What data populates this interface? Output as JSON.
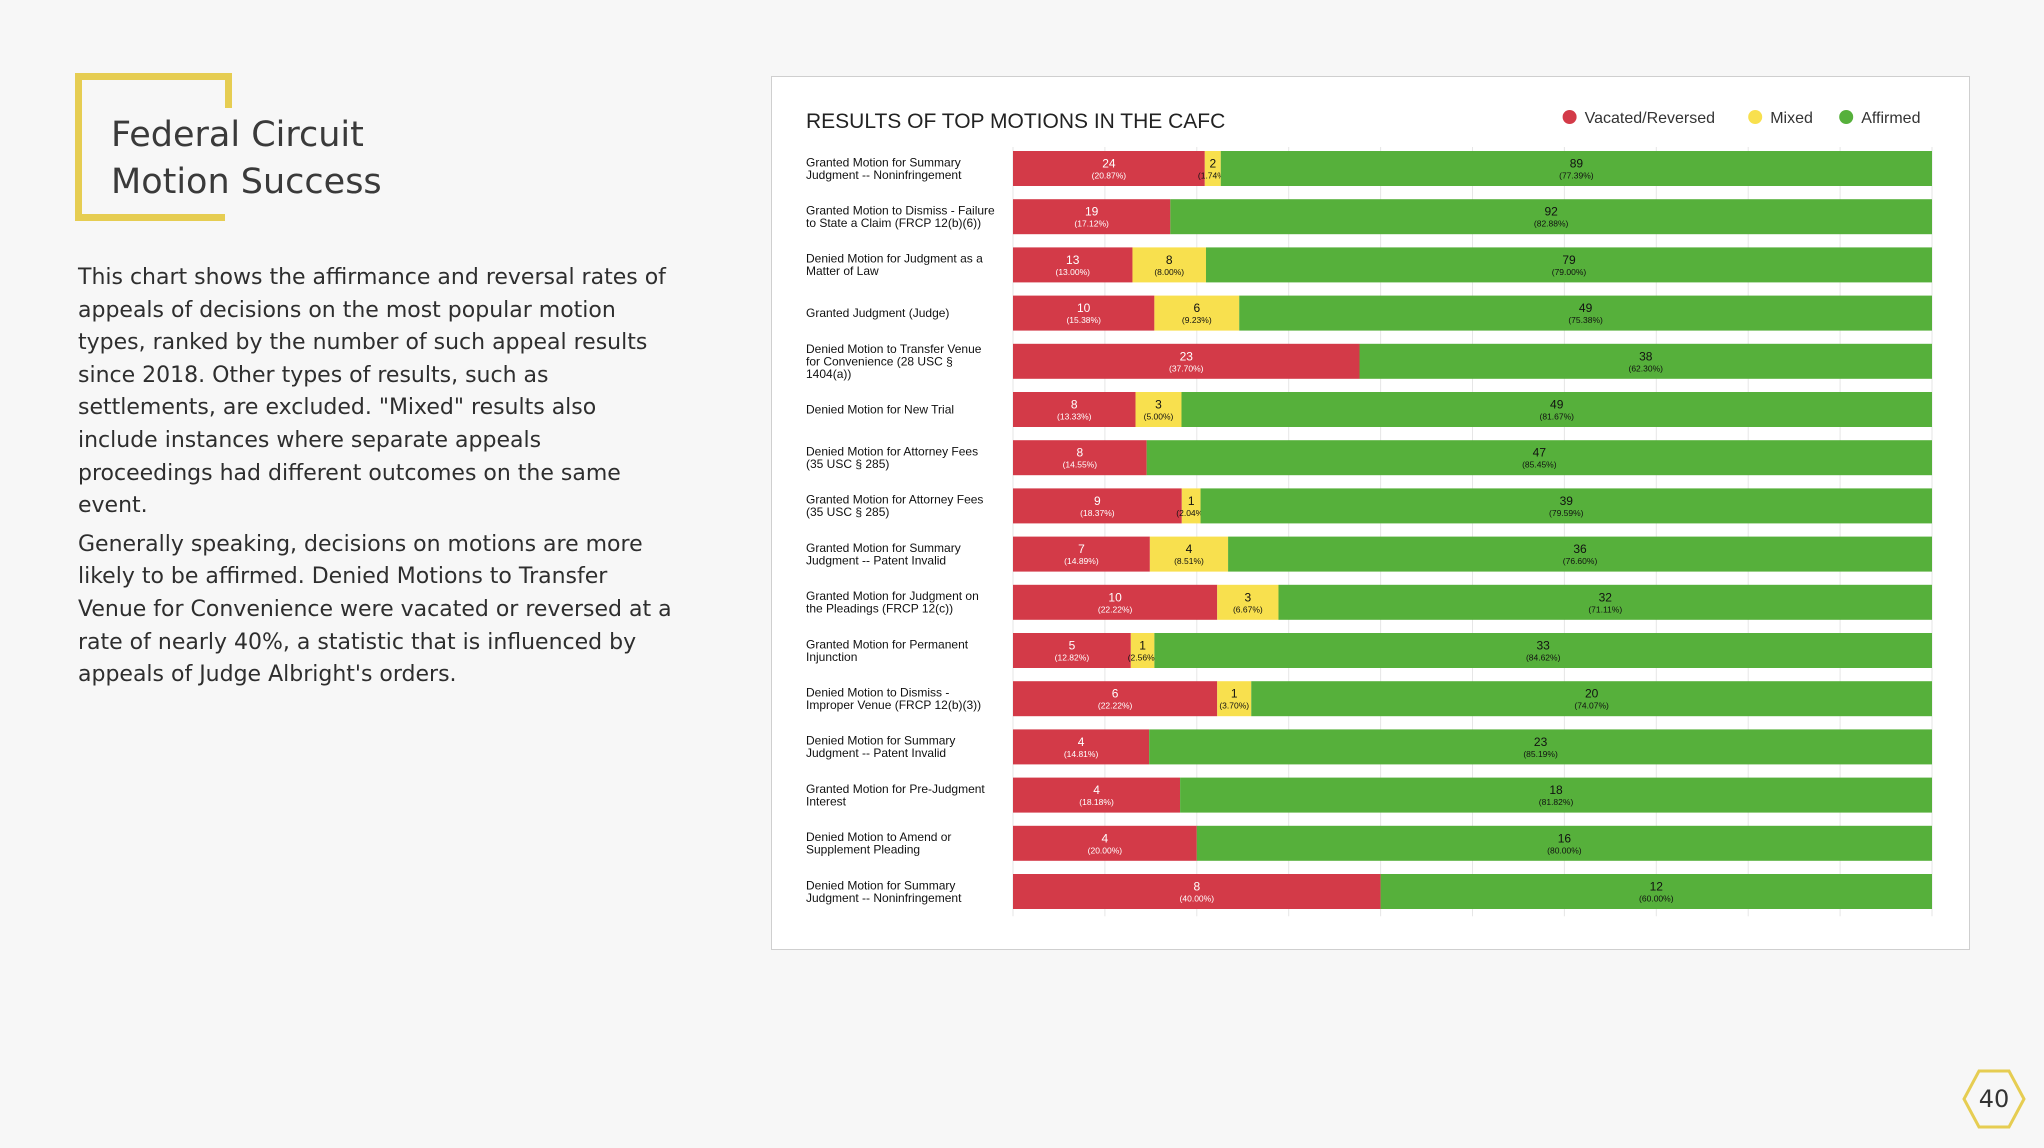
{
  "slide": {
    "title": "Federal Circuit\nMotion Success",
    "paragraphs": [
      "This chart shows the affirmance and reversal rates of appeals of decisions on the most popular motion types, ranked by the number of such appeal results since 2018. Other types of results, such as settlements, are excluded. \"Mixed\" results also include instances where separate appeals proceedings had different outcomes on the same event.",
      "Generally speaking, decisions on motions are more likely to be affirmed. Denied Motions to Transfer Venue for Convenience were vacated or reversed at a rate of nearly 40%, a statistic that is influenced by appeals of Judge Albright's orders."
    ],
    "page_number": "40",
    "accent_color": "#e6cd52"
  },
  "chart_data": {
    "type": "bar",
    "orientation": "horizontal",
    "stacked": true,
    "normalized": true,
    "title": "RESULTS OF TOP MOTIONS IN THE CAFC",
    "legend_position": "top-right",
    "grid": true,
    "categories": [
      [
        "Granted Motion for Summary",
        "Judgment -- Noninfringement"
      ],
      [
        "Granted Motion to Dismiss - Failure",
        "to State a Claim (FRCP 12(b)(6))"
      ],
      [
        "Denied Motion for Judgment as a",
        "Matter of Law"
      ],
      [
        "Granted Judgment (Judge)"
      ],
      [
        "Denied Motion to Transfer Venue",
        "for Convenience (28 USC §",
        "1404(a))"
      ],
      [
        "Denied Motion for New Trial"
      ],
      [
        "Denied Motion for Attorney Fees",
        "(35 USC § 285)"
      ],
      [
        "Granted Motion for Attorney Fees",
        "(35 USC § 285)"
      ],
      [
        "Granted Motion for Summary",
        "Judgment -- Patent Invalid"
      ],
      [
        "Granted Motion for Judgment on",
        "the Pleadings (FRCP 12(c))"
      ],
      [
        "Granted Motion for Permanent",
        "Injunction"
      ],
      [
        "Denied Motion to Dismiss -",
        "Improper Venue (FRCP 12(b)(3))"
      ],
      [
        "Denied Motion for Summary",
        "Judgment -- Patent Invalid"
      ],
      [
        "Granted Motion for Pre-Judgment",
        "Interest"
      ],
      [
        "Denied Motion to Amend or",
        "Supplement Pleading"
      ],
      [
        "Denied Motion for Summary",
        "Judgment -- Noninfringement"
      ]
    ],
    "series": [
      {
        "name": "Vacated/Reversed",
        "color": "#d33a48",
        "values": [
          24,
          19,
          13,
          10,
          23,
          8,
          8,
          9,
          7,
          10,
          5,
          6,
          4,
          4,
          4,
          8
        ],
        "percents": [
          "(20.87%)",
          "(17.12%)",
          "(13.00%)",
          "(15.38%)",
          "(37.70%)",
          "(13.33%)",
          "(14.55%)",
          "(18.37%)",
          "(14.89%)",
          "(22.22%)",
          "(12.82%)",
          "(22.22%)",
          "(14.81%)",
          "(18.18%)",
          "(20.00%)",
          "(40.00%)"
        ]
      },
      {
        "name": "Mixed",
        "color": "#f8e04e",
        "values": [
          2,
          0,
          8,
          6,
          0,
          3,
          0,
          1,
          4,
          3,
          1,
          1,
          0,
          0,
          0,
          0
        ],
        "percents": [
          "(1.74%)",
          "",
          "(8.00%)",
          "(9.23%)",
          "",
          "(5.00%)",
          "",
          "(2.04%)",
          "(8.51%)",
          "(6.67%)",
          "(2.56%)",
          "(3.70%)",
          "",
          "",
          "",
          ""
        ]
      },
      {
        "name": "Affirmed",
        "color": "#56b03b",
        "values": [
          89,
          92,
          79,
          49,
          38,
          49,
          47,
          39,
          36,
          32,
          33,
          20,
          23,
          18,
          16,
          12
        ],
        "percents": [
          "(77.39%)",
          "(82.88%)",
          "(79.00%)",
          "(75.38%)",
          "(62.30%)",
          "(81.67%)",
          "(85.45%)",
          "(79.59%)",
          "(76.60%)",
          "(71.11%)",
          "(84.62%)",
          "(74.07%)",
          "(85.19%)",
          "(81.82%)",
          "(80.00%)",
          "(60.00%)"
        ]
      }
    ]
  }
}
